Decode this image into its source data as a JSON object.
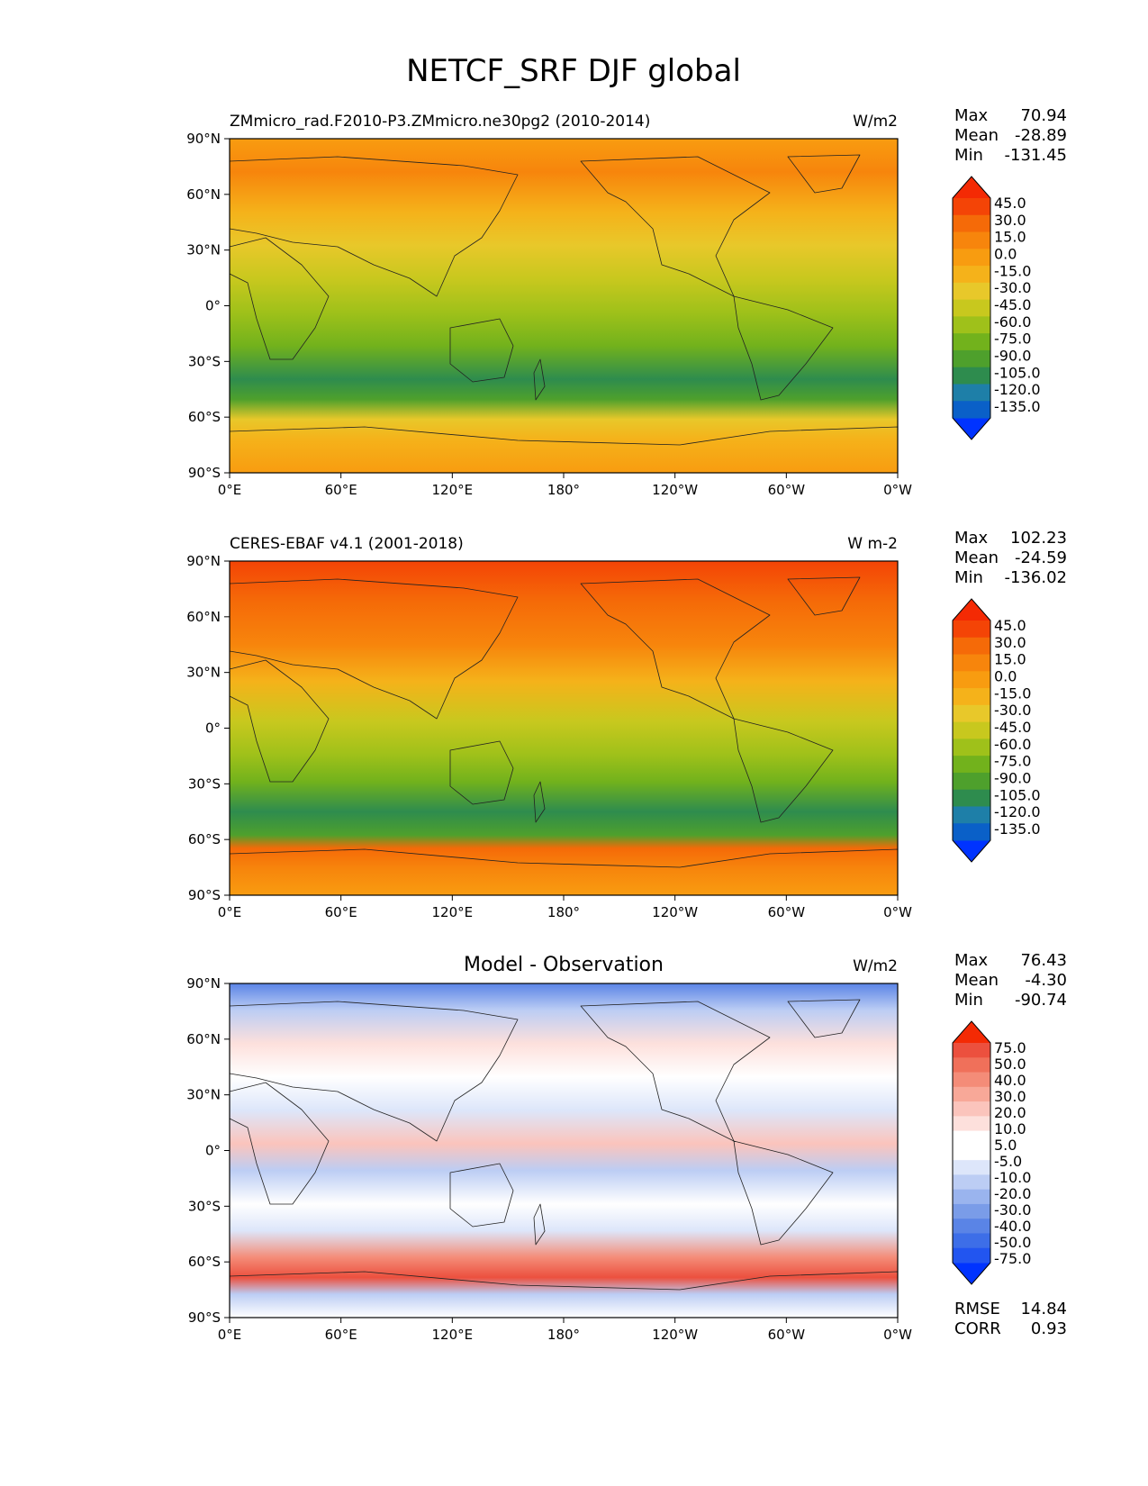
{
  "title": "NETCF_SRF DJF global",
  "panels": [
    {
      "id": "test",
      "left_title": "ZMmicro_rad.F2010-P3.ZMmicro.ne30pg2 (2010-2014)",
      "center_title": "",
      "units": "W/m2",
      "stats": [
        {
          "label": "Max",
          "value": "70.94"
        },
        {
          "label": "Mean",
          "value": "-28.89"
        },
        {
          "label": "Min",
          "value": "-131.45"
        }
      ],
      "colorbar": {
        "colors": [
          "#0033ff",
          "#0a60c8",
          "#1e7fa8",
          "#2e8c4e",
          "#4ea02c",
          "#72b21c",
          "#9fc11a",
          "#c8c81e",
          "#e8c82a",
          "#f5b21a",
          "#f89c10",
          "#f7850c",
          "#f56a08",
          "#f44406",
          "#f42a04"
        ],
        "tick_labels": [
          "-135.0",
          "-120.0",
          "-105.0",
          "-90.0",
          "-75.0",
          "-60.0",
          "-45.0",
          "-30.0",
          "-15.0",
          "0.0",
          "15.0",
          "30.0",
          "45.0"
        ]
      }
    },
    {
      "id": "reference",
      "left_title": "CERES-EBAF v4.1 (2001-2018)",
      "center_title": "",
      "units": "W m-2",
      "stats": [
        {
          "label": "Max",
          "value": "102.23"
        },
        {
          "label": "Mean",
          "value": "-24.59"
        },
        {
          "label": "Min",
          "value": "-136.02"
        }
      ],
      "colorbar": {
        "colors": [
          "#0033ff",
          "#0a60c8",
          "#1e7fa8",
          "#2e8c4e",
          "#4ea02c",
          "#72b21c",
          "#9fc11a",
          "#c8c81e",
          "#e8c82a",
          "#f5b21a",
          "#f89c10",
          "#f7850c",
          "#f56a08",
          "#f44406",
          "#f42a04"
        ],
        "tick_labels": [
          "-135.0",
          "-120.0",
          "-105.0",
          "-90.0",
          "-75.0",
          "-60.0",
          "-45.0",
          "-30.0",
          "-15.0",
          "0.0",
          "15.0",
          "30.0",
          "45.0"
        ]
      }
    },
    {
      "id": "difference",
      "left_title": "",
      "center_title": "Model - Observation",
      "units": "W/m2",
      "stats": [
        {
          "label": "Max",
          "value": "76.43"
        },
        {
          "label": "Mean",
          "value": "-4.30"
        },
        {
          "label": "Min",
          "value": "-90.74"
        }
      ],
      "bottom_stats": [
        {
          "label": "RMSE",
          "value": "14.84"
        },
        {
          "label": "CORR",
          "value": "0.93"
        }
      ],
      "colorbar": {
        "colors": [
          "#0033ff",
          "#2255f0",
          "#3d6ee8",
          "#5a84e6",
          "#7a9ce8",
          "#9ab4ee",
          "#bccdf4",
          "#dde6fa",
          "#ffffff",
          "#ffffff",
          "#fde0dc",
          "#fbc4bc",
          "#f8a898",
          "#f48c78",
          "#f0705a",
          "#ec503e",
          "#f42a04"
        ],
        "tick_labels": [
          "-75.0",
          "-50.0",
          "-40.0",
          "-30.0",
          "-20.0",
          "-10.0",
          "-5.0",
          "5.0",
          "10.0",
          "20.0",
          "30.0",
          "40.0",
          "50.0",
          "75.0"
        ]
      }
    }
  ],
  "axes": {
    "lat_labels": [
      "90°N",
      "60°N",
      "30°N",
      "0°",
      "30°S",
      "60°S",
      "90°S"
    ],
    "lon_labels": [
      "0°E",
      "60°E",
      "120°E",
      "180°",
      "120°W",
      "60°W",
      "0°W"
    ]
  }
}
